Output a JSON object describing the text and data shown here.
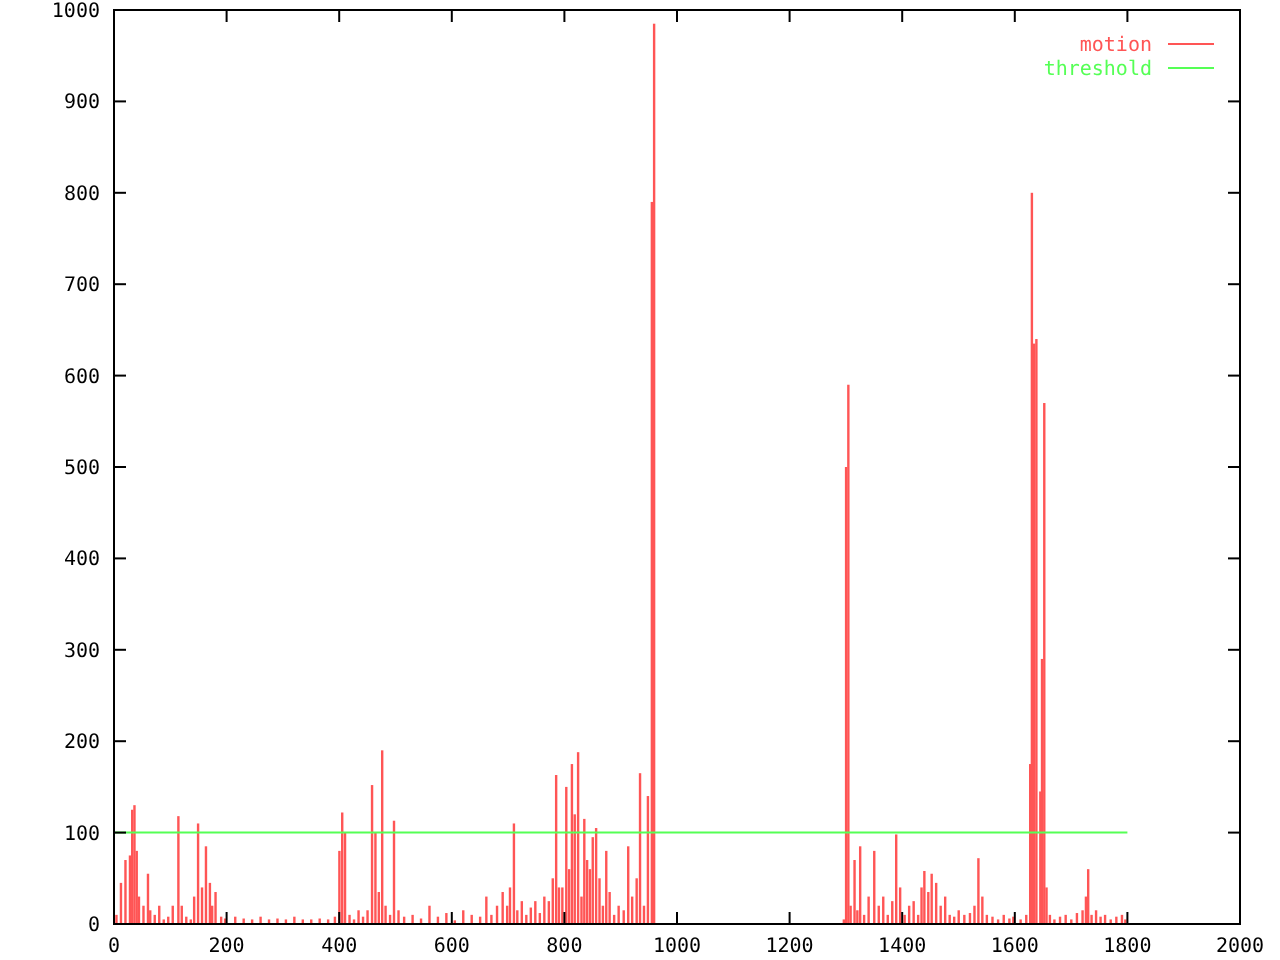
{
  "chart_data": {
    "type": "bar",
    "xlim": [
      0,
      2000
    ],
    "xticks": [
      0,
      200,
      400,
      600,
      800,
      1000,
      1200,
      1400,
      1600,
      1800,
      2000
    ],
    "ylim": [
      0,
      1000
    ],
    "yticks": [
      0,
      100,
      200,
      300,
      400,
      500,
      600,
      700,
      800,
      900,
      1000
    ],
    "grid": false,
    "legend": "top right",
    "series": [
      {
        "name": "motion",
        "color": "#ff5555",
        "x": [
          4,
          12,
          20,
          28,
          32,
          36,
          40,
          44,
          52,
          60,
          64,
          72,
          80,
          88,
          96,
          104,
          114,
          120,
          128,
          136,
          142,
          149,
          156,
          163,
          170,
          174,
          180,
          190,
          197,
          215,
          230,
          245,
          260,
          275,
          290,
          305,
          320,
          335,
          350,
          365,
          380,
          392,
          400,
          405,
          410,
          418,
          426,
          434,
          442,
          450,
          458,
          464,
          470,
          476,
          482,
          490,
          497,
          505,
          515,
          530,
          545,
          560,
          575,
          590,
          605,
          620,
          635,
          650,
          661,
          670,
          680,
          690,
          698,
          703,
          710,
          716,
          724,
          732,
          740,
          748,
          756,
          764,
          772,
          779,
          785,
          790,
          796,
          803,
          808,
          813,
          818,
          824,
          830,
          835,
          840,
          845,
          850,
          856,
          862,
          868,
          874,
          880,
          888,
          896,
          905,
          913,
          920,
          928,
          934,
          941,
          948,
          955,
          959,
          1296,
          1300,
          1304,
          1308,
          1315,
          1320,
          1325,
          1332,
          1340,
          1350,
          1358,
          1366,
          1374,
          1382,
          1389,
          1396,
          1404,
          1412,
          1420,
          1428,
          1434,
          1439,
          1446,
          1452,
          1460,
          1468,
          1476,
          1484,
          1492,
          1500,
          1510,
          1520,
          1528,
          1535,
          1542,
          1550,
          1560,
          1570,
          1580,
          1590,
          1597,
          1610,
          1620,
          1627,
          1630,
          1634,
          1638,
          1645,
          1648,
          1652,
          1656,
          1662,
          1670,
          1680,
          1690,
          1700,
          1710,
          1720,
          1726,
          1730,
          1736,
          1744,
          1752,
          1760,
          1770,
          1780,
          1790,
          1796
        ],
        "values": [
          10,
          45,
          70,
          75,
          125,
          130,
          80,
          30,
          20,
          55,
          15,
          10,
          20,
          5,
          8,
          20,
          118,
          20,
          8,
          5,
          30,
          110,
          40,
          85,
          45,
          20,
          35,
          8,
          6,
          8,
          6,
          5,
          8,
          5,
          6,
          5,
          8,
          5,
          5,
          6,
          5,
          8,
          80,
          122,
          100,
          10,
          5,
          15,
          8,
          15,
          152,
          100,
          35,
          190,
          20,
          10,
          113,
          15,
          8,
          10,
          6,
          20,
          8,
          12,
          4,
          15,
          10,
          8,
          30,
          10,
          20,
          35,
          20,
          40,
          110,
          15,
          25,
          10,
          18,
          25,
          12,
          30,
          25,
          50,
          163,
          40,
          40,
          150,
          60,
          175,
          120,
          188,
          30,
          115,
          70,
          60,
          95,
          105,
          50,
          20,
          80,
          35,
          10,
          20,
          15,
          85,
          30,
          50,
          165,
          20,
          140,
          790,
          985,
          5,
          500,
          590,
          20,
          70,
          15,
          85,
          10,
          30,
          80,
          20,
          30,
          10,
          25,
          98,
          40,
          10,
          20,
          25,
          10,
          40,
          58,
          35,
          55,
          45,
          20,
          30,
          10,
          8,
          15,
          10,
          12,
          20,
          72,
          30,
          10,
          8,
          5,
          10,
          6,
          8,
          5,
          10,
          175,
          800,
          635,
          640,
          145,
          290,
          570,
          40,
          10,
          5,
          8,
          10,
          5,
          12,
          15,
          30,
          60,
          10,
          15,
          8,
          10,
          5,
          8,
          10,
          5
        ]
      },
      {
        "name": "threshold",
        "color": "#55ff55",
        "type": "line",
        "x": [
          0,
          1800
        ],
        "values": [
          100,
          100
        ]
      }
    ]
  }
}
